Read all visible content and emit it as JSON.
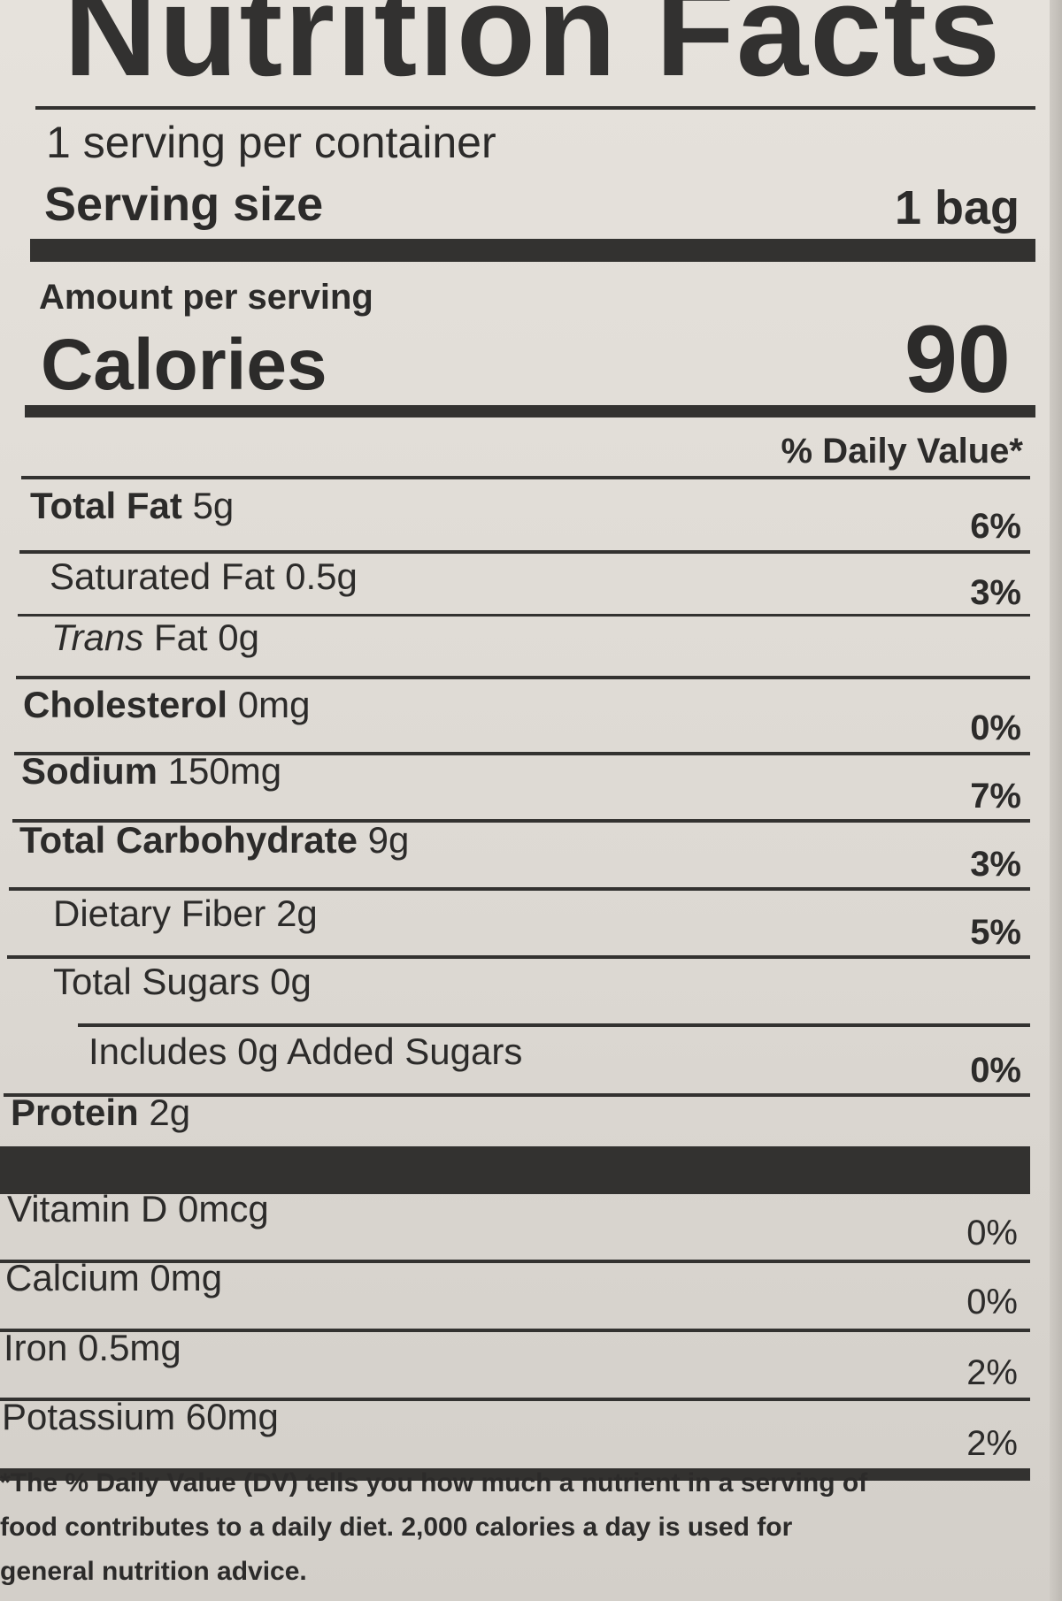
{
  "label": {
    "title": "Nutrition Facts",
    "servings_per_container": "1 serving per container",
    "serving_size_label": "Serving size",
    "serving_size_value": "1 bag",
    "amount_per_serving": "Amount per serving",
    "calories_label": "Calories",
    "calories_value": "90",
    "dv_header": "% Daily Value*",
    "nutrients": [
      {
        "name": "Total Fat",
        "amount": "5g",
        "dv": "6%"
      },
      {
        "name": "Saturated Fat",
        "amount": "0.5g",
        "dv": "3%"
      },
      {
        "name": "Trans",
        "name_rest": "Fat",
        "amount": "0g",
        "dv": ""
      },
      {
        "name": "Cholesterol",
        "amount": "0mg",
        "dv": "0%"
      },
      {
        "name": "Sodium",
        "amount": "150mg",
        "dv": "7%"
      },
      {
        "name": "Total Carbohydrate",
        "amount": "9g",
        "dv": "3%"
      },
      {
        "name": "Dietary Fiber",
        "amount": "2g",
        "dv": "5%"
      },
      {
        "name": "Total Sugars",
        "amount": "0g",
        "dv": ""
      },
      {
        "name": "Includes 0g Added Sugars",
        "amount": "",
        "dv": "0%"
      },
      {
        "name": "Protein",
        "amount": "2g",
        "dv": ""
      }
    ],
    "vitamins": [
      {
        "name": "Vitamin D",
        "amount": "0mcg",
        "dv": "0%"
      },
      {
        "name": "Calcium",
        "amount": "0mg",
        "dv": "0%"
      },
      {
        "name": "Iron",
        "amount": "0.5mg",
        "dv": "2%"
      },
      {
        "name": "Potassium",
        "amount": "60mg",
        "dv": "2%"
      }
    ],
    "footnote_lines": [
      "*The % Daily Value (DV) tells you how much a nutrient in a serving of",
      "food contributes to a daily diet. 2,000 calories a day is used for",
      "general nutrition advice."
    ]
  }
}
